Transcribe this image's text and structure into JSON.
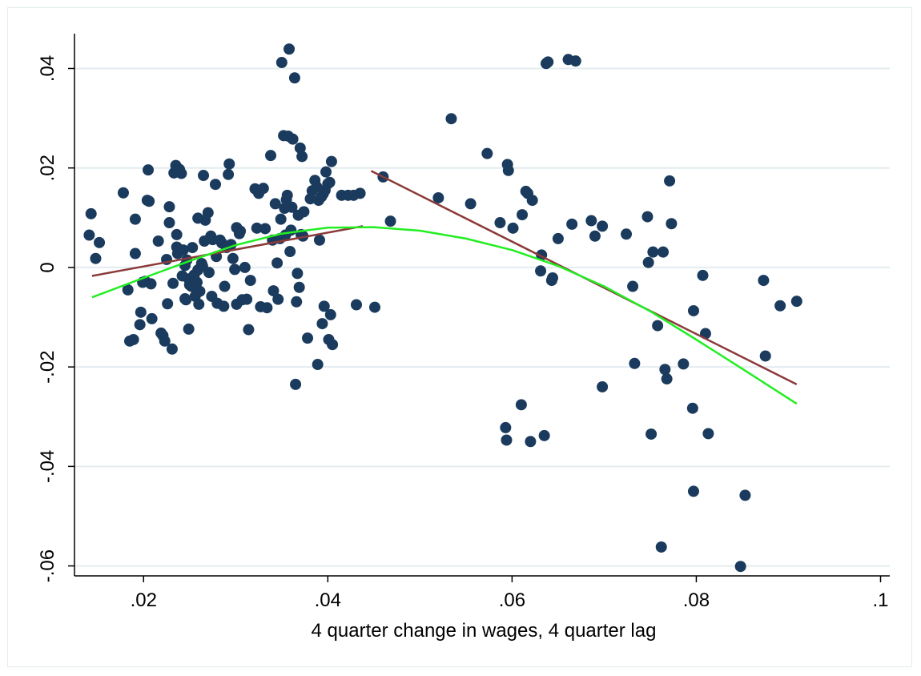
{
  "chart_data": {
    "type": "scatter",
    "xlabel": "4 quarter change in wages, 4 quarter lag",
    "ylabel": "",
    "xlim": [
      0.0125,
      0.101
    ],
    "ylim": [
      -0.062,
      0.047
    ],
    "x_ticks": [
      0.02,
      0.04,
      0.06,
      0.08,
      0.1
    ],
    "x_tick_labels": [
      ".02",
      ".04",
      ".06",
      ".08",
      ".1"
    ],
    "y_ticks": [
      -0.06,
      -0.04,
      -0.02,
      0,
      0.02,
      0.04
    ],
    "y_tick_labels": [
      "-.06",
      "-.04",
      "-.02",
      "0",
      ".02",
      ".04"
    ],
    "grid": true,
    "legend": "none",
    "colors": {
      "points": "#1a3b5d",
      "fit_lines": "#8b3a3a",
      "curve": "#22ee22",
      "grid": "#e3ecef"
    },
    "series": [
      {
        "type": "scatter",
        "points": [
          [
            0.0143,
            0.0108
          ],
          [
            0.0141,
            0.0065
          ],
          [
            0.0148,
            0.0018
          ],
          [
            0.0152,
            0.005
          ],
          [
            0.0178,
            0.015
          ],
          [
            0.0183,
            -0.0045
          ],
          [
            0.0185,
            -0.0148
          ],
          [
            0.0189,
            -0.0145
          ],
          [
            0.0191,
            0.0097
          ],
          [
            0.0191,
            0.0028
          ],
          [
            0.0196,
            -0.0115
          ],
          [
            0.0197,
            -0.009
          ],
          [
            0.0199,
            -0.003
          ],
          [
            0.0202,
            -0.0028
          ],
          [
            0.0204,
            0.0135
          ],
          [
            0.0205,
            0.0196
          ],
          [
            0.0206,
            0.0133
          ],
          [
            0.0208,
            -0.0033
          ],
          [
            0.0209,
            -0.0103
          ],
          [
            0.0216,
            0.0053
          ],
          [
            0.0219,
            -0.0132
          ],
          [
            0.0221,
            -0.0137
          ],
          [
            0.0223,
            -0.0148
          ],
          [
            0.0225,
            0.0016
          ],
          [
            0.0226,
            -0.0073
          ],
          [
            0.0228,
            0.0122
          ],
          [
            0.0228,
            0.009
          ],
          [
            0.0231,
            -0.0164
          ],
          [
            0.0232,
            -0.0032
          ],
          [
            0.0233,
            0.019
          ],
          [
            0.0235,
            0.0205
          ],
          [
            0.0236,
            0.0041
          ],
          [
            0.0236,
            0.0066
          ],
          [
            0.0237,
            0.0028
          ],
          [
            0.0239,
            0.0197
          ],
          [
            0.0241,
            0.0189
          ],
          [
            0.0242,
            -0.0017
          ],
          [
            0.0243,
            0.0035
          ],
          [
            0.0245,
            -0.0063
          ],
          [
            0.0245,
            0.0004
          ],
          [
            0.0246,
            -0.0065
          ],
          [
            0.0247,
            0.0015
          ],
          [
            0.0249,
            -0.0124
          ],
          [
            0.0249,
            -0.0023
          ],
          [
            0.025,
            -0.0035
          ],
          [
            0.0252,
            -0.0038
          ],
          [
            0.0253,
            0.004
          ],
          [
            0.0254,
            -0.0025
          ],
          [
            0.0255,
            -0.0015
          ],
          [
            0.0256,
            -0.0058
          ],
          [
            0.0257,
            -0.0042
          ],
          [
            0.0258,
            -0.003
          ],
          [
            0.0259,
            0.0099
          ],
          [
            0.0259,
            -0.0005
          ],
          [
            0.026,
            -0.0074
          ],
          [
            0.0261,
            -0.0048
          ],
          [
            0.0263,
            0.0008
          ],
          [
            0.0264,
            0.0003
          ],
          [
            0.0265,
            0.0185
          ],
          [
            0.0266,
            0.0053
          ],
          [
            0.0267,
            0.0095
          ],
          [
            0.027,
            0.011
          ],
          [
            0.0271,
            -0.001
          ],
          [
            0.0273,
            0.0063
          ],
          [
            0.0274,
            -0.0058
          ],
          [
            0.0275,
            0.0056
          ],
          [
            0.0278,
            0.0167
          ],
          [
            0.0279,
            0.0022
          ],
          [
            0.028,
            -0.0072
          ],
          [
            0.0283,
            0.0055
          ],
          [
            0.0285,
            0.0049
          ],
          [
            0.0287,
            -0.0078
          ],
          [
            0.0288,
            -0.0038
          ],
          [
            0.029,
            0.004
          ],
          [
            0.0292,
            0.0187
          ],
          [
            0.0293,
            0.0208
          ],
          [
            0.0295,
            0.0046
          ],
          [
            0.0297,
            0.0018
          ],
          [
            0.0299,
            -0.0004
          ],
          [
            0.0301,
            0.008
          ],
          [
            0.0301,
            -0.0074
          ],
          [
            0.0304,
            0.0068
          ],
          [
            0.0305,
            0.0073
          ],
          [
            0.0307,
            -0.0065
          ],
          [
            0.031,
            0
          ],
          [
            0.0312,
            -0.0064
          ],
          [
            0.0314,
            -0.0125
          ],
          [
            0.0316,
            -0.0026
          ],
          [
            0.0321,
            0.0158
          ],
          [
            0.0323,
            0.0079
          ],
          [
            0.0325,
            0.0149
          ],
          [
            0.0327,
            -0.0079
          ],
          [
            0.033,
            0.0159
          ],
          [
            0.0332,
            0.0078
          ],
          [
            0.0334,
            -0.0081
          ],
          [
            0.0338,
            0.0225
          ],
          [
            0.034,
            0.0055
          ],
          [
            0.0341,
            -0.0047
          ],
          [
            0.0343,
            0.0128
          ],
          [
            0.0345,
            0.0009
          ],
          [
            0.0346,
            -0.0064
          ],
          [
            0.0348,
            0.0058
          ],
          [
            0.0349,
            0.0097
          ],
          [
            0.035,
            0.0412
          ],
          [
            0.0352,
            0.0265
          ],
          [
            0.0353,
            0.0119
          ],
          [
            0.0354,
            0.0065
          ],
          [
            0.0355,
            0.0136
          ],
          [
            0.0356,
            0.0145
          ],
          [
            0.0357,
            0.0264
          ],
          [
            0.0358,
            0.0439
          ],
          [
            0.0359,
            0.0032
          ],
          [
            0.036,
            0.0075
          ],
          [
            0.0361,
            0.0121
          ],
          [
            0.0362,
            0.0258
          ],
          [
            0.0364,
            0.0381
          ],
          [
            0.0365,
            -0.0235
          ],
          [
            0.0366,
            -0.0069
          ],
          [
            0.0367,
            -0.0012
          ],
          [
            0.0368,
            0.0105
          ],
          [
            0.0369,
            -0.004
          ],
          [
            0.037,
            0.024
          ],
          [
            0.0371,
            0.0066
          ],
          [
            0.0372,
            0.0223
          ],
          [
            0.0373,
            0.0063
          ],
          [
            0.0374,
            0.0112
          ],
          [
            0.0378,
            -0.0142
          ],
          [
            0.0381,
            0.0138
          ],
          [
            0.0383,
            0.0154
          ],
          [
            0.0386,
            0.0175
          ],
          [
            0.0388,
            0.0162
          ],
          [
            0.0389,
            -0.0195
          ],
          [
            0.039,
            0.0135
          ],
          [
            0.0391,
            0.0055
          ],
          [
            0.0393,
            0.0142
          ],
          [
            0.0394,
            -0.0113
          ],
          [
            0.0395,
            0.0148
          ],
          [
            0.0396,
            -0.0078
          ],
          [
            0.0397,
            0.0155
          ],
          [
            0.0398,
            0.0192
          ],
          [
            0.04,
            0.0168
          ],
          [
            0.0401,
            -0.0145
          ],
          [
            0.0402,
            0.0171
          ],
          [
            0.0403,
            -0.0095
          ],
          [
            0.0404,
            0.0213
          ],
          [
            0.0405,
            -0.0155
          ],
          [
            0.0415,
            0.0145
          ],
          [
            0.0422,
            0.0145
          ],
          [
            0.0428,
            0.0145
          ],
          [
            0.0431,
            -0.0075
          ],
          [
            0.0435,
            0.0149
          ],
          [
            0.0451,
            -0.008
          ],
          [
            0.046,
            0.0182
          ],
          [
            0.0468,
            0.0093
          ],
          [
            0.052,
            0.014
          ],
          [
            0.0534,
            0.0299
          ],
          [
            0.0555,
            0.0128
          ],
          [
            0.0573,
            0.0229
          ],
          [
            0.0587,
            0.009
          ],
          [
            0.0593,
            -0.0322
          ],
          [
            0.0594,
            -0.0347
          ],
          [
            0.0595,
            0.0207
          ],
          [
            0.0596,
            0.0195
          ],
          [
            0.0601,
            0.0079
          ],
          [
            0.061,
            -0.0276
          ],
          [
            0.0611,
            0.0106
          ],
          [
            0.0615,
            0.0153
          ],
          [
            0.0617,
            0.0149
          ],
          [
            0.062,
            -0.035
          ],
          [
            0.0622,
            0.0135
          ],
          [
            0.0631,
            -0.0007
          ],
          [
            0.0632,
            0.0025
          ],
          [
            0.0635,
            -0.0338
          ],
          [
            0.0637,
            0.041
          ],
          [
            0.0639,
            0.0413
          ],
          [
            0.0643,
            -0.0026
          ],
          [
            0.0644,
            -0.0021
          ],
          [
            0.065,
            0.0058
          ],
          [
            0.0661,
            0.0418
          ],
          [
            0.0665,
            0.0087
          ],
          [
            0.0669,
            0.0415
          ],
          [
            0.0686,
            0.0094
          ],
          [
            0.069,
            0.0063
          ],
          [
            0.0698,
            0.0083
          ],
          [
            0.0698,
            -0.024
          ],
          [
            0.0724,
            0.0067
          ],
          [
            0.0731,
            -0.0038
          ],
          [
            0.0733,
            -0.0193
          ],
          [
            0.0747,
            0.0102
          ],
          [
            0.0748,
            0.001
          ],
          [
            0.0751,
            -0.0335
          ],
          [
            0.0753,
            0.0031
          ],
          [
            0.0758,
            -0.0117
          ],
          [
            0.0762,
            -0.0562
          ],
          [
            0.0764,
            0.0031
          ],
          [
            0.0766,
            -0.0205
          ],
          [
            0.0768,
            -0.0224
          ],
          [
            0.0771,
            0.0174
          ],
          [
            0.0773,
            0.0088
          ],
          [
            0.0786,
            -0.0194
          ],
          [
            0.0796,
            -0.0283
          ],
          [
            0.0797,
            -0.0087
          ],
          [
            0.0797,
            -0.045
          ],
          [
            0.0807,
            -0.0016
          ],
          [
            0.081,
            -0.0133
          ],
          [
            0.0813,
            -0.0334
          ],
          [
            0.0848,
            -0.0601
          ],
          [
            0.0853,
            -0.0458
          ],
          [
            0.0873,
            -0.0026
          ],
          [
            0.0875,
            -0.0178
          ],
          [
            0.0891,
            -0.0077
          ],
          [
            0.0909,
            -0.0068
          ]
        ]
      },
      {
        "type": "line",
        "points": [
          [
            0.0144,
            -0.0017
          ],
          [
            0.0438,
            0.0083
          ]
        ]
      },
      {
        "type": "line",
        "points": [
          [
            0.0447,
            0.0194
          ],
          [
            0.0909,
            -0.0235
          ]
        ]
      },
      {
        "type": "line",
        "points": [
          [
            0.0144,
            -0.006
          ],
          [
            0.02,
            -0.0021
          ],
          [
            0.025,
            0.0013
          ],
          [
            0.03,
            0.0045
          ],
          [
            0.035,
            0.0068
          ],
          [
            0.04,
            0.008
          ],
          [
            0.045,
            0.0081
          ],
          [
            0.05,
            0.0074
          ],
          [
            0.055,
            0.0058
          ],
          [
            0.06,
            0.0035
          ],
          [
            0.065,
            0.0003
          ],
          [
            0.07,
            -0.0038
          ],
          [
            0.075,
            -0.0088
          ],
          [
            0.08,
            -0.0145
          ],
          [
            0.085,
            -0.0204
          ],
          [
            0.0909,
            -0.0274
          ]
        ]
      }
    ]
  }
}
